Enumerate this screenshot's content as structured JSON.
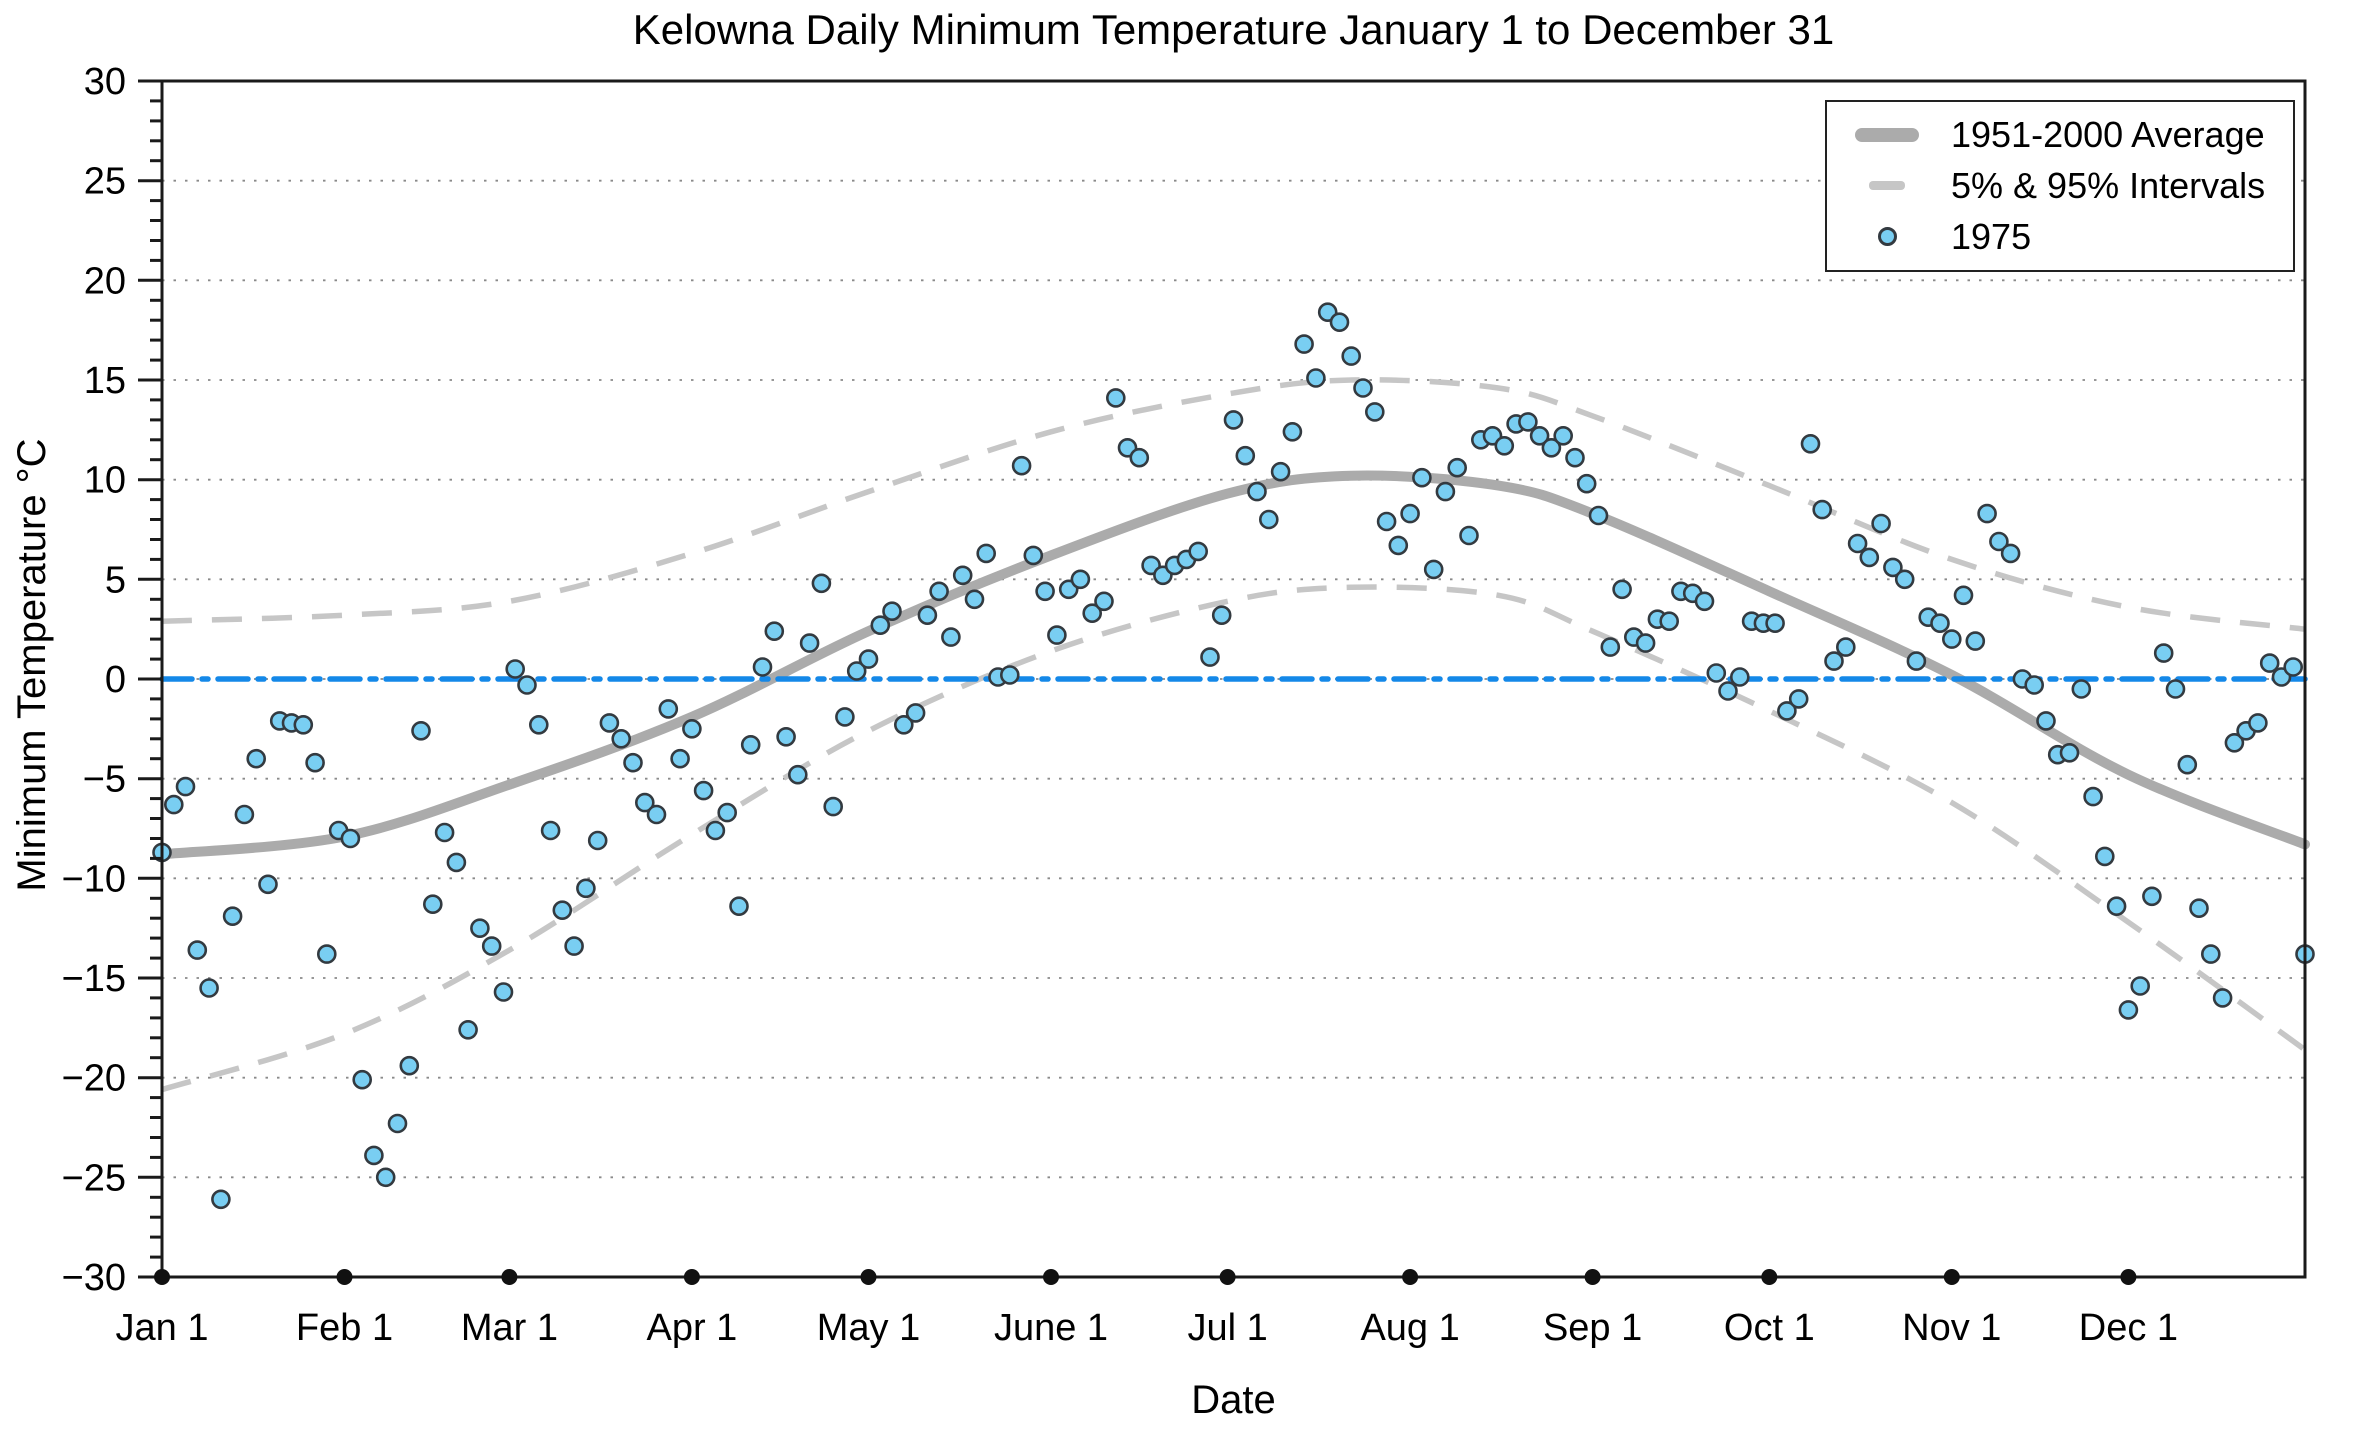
{
  "chart_data": {
    "type": "scatter",
    "title": "Kelowna Daily Minimum Temperature January 1 to December 31",
    "xlabel": "Date",
    "ylabel": "Minimum Temperature °C",
    "ylim": [
      -30,
      30
    ],
    "y_tick_step_major": 5,
    "y_tick_step_minor": 1,
    "grid": "horizontal dotted lines every 5°C",
    "legend_position": "top-right",
    "legend": [
      {
        "label": "1951-2000 Average",
        "swatch": "thick-gray-line"
      },
      {
        "label": "5% & 95% Intervals",
        "swatch": "gray-dashed-line"
      },
      {
        "label": "1975",
        "swatch": "blue-circle-marker"
      }
    ],
    "y_tick_labels": [
      "30",
      "25",
      "20",
      "15",
      "10",
      "5",
      "0",
      "−5",
      "−10",
      "−15",
      "−20",
      "−25",
      "−30"
    ],
    "x_tick_labels": [
      "Jan 1",
      "Feb 1",
      "Mar 1",
      "Apr 1",
      "May 1",
      "June 1",
      "Jul 1",
      "Aug 1",
      "Sep 1",
      "Oct 1",
      "Nov 1",
      "Dec 1"
    ],
    "month_start_days": [
      1,
      32,
      60,
      91,
      121,
      152,
      182,
      213,
      244,
      274,
      305,
      335
    ],
    "x_range_days": [
      1,
      365
    ],
    "zero_reference_line": {
      "value": 0,
      "style": "dash-dot",
      "color": "#1488E8"
    },
    "colors": {
      "average_line": "#ABABAB",
      "interval_lines": "#C6C6C6",
      "scatter_fill": "#79CEF2",
      "scatter_edge": "#333A40",
      "zero_line": "#1488E8",
      "axis": "#1a1a1a",
      "gridline": "#8a8a8a",
      "month_dot": "#111111"
    },
    "average_1951_2000": {
      "x_days": [
        1,
        32,
        60,
        91,
        121,
        152,
        182,
        203,
        228,
        244,
        274,
        305,
        335,
        365
      ],
      "values": [
        -8.8,
        -7.9,
        -5.3,
        -1.9,
        2.4,
        6.2,
        9.3,
        10.2,
        9.7,
        8.3,
        4.4,
        0.2,
        -4.8,
        -8.3
      ]
    },
    "interval_95_upper": {
      "x_days": [
        1,
        32,
        60,
        91,
        121,
        152,
        182,
        203,
        228,
        244,
        274,
        305,
        335,
        365
      ],
      "values": [
        2.9,
        3.2,
        3.9,
        6.3,
        9.4,
        12.4,
        14.3,
        15.0,
        14.6,
        13.2,
        9.7,
        6.0,
        3.6,
        2.5
      ]
    },
    "interval_5_lower": {
      "x_days": [
        1,
        32,
        60,
        91,
        121,
        152,
        182,
        203,
        228,
        244,
        274,
        305,
        335,
        365
      ],
      "values": [
        -20.6,
        -17.8,
        -13.6,
        -7.8,
        -2.6,
        1.4,
        3.9,
        4.6,
        4.2,
        2.4,
        -1.6,
        -6.2,
        -12.2,
        -18.6
      ]
    },
    "scatter_1975_points": [
      [
        1,
        -8.7
      ],
      [
        3,
        -6.3
      ],
      [
        5,
        -5.4
      ],
      [
        7,
        -13.6
      ],
      [
        9,
        -15.5
      ],
      [
        11,
        -26.1
      ],
      [
        13,
        -11.9
      ],
      [
        15,
        -6.8
      ],
      [
        17,
        -4.0
      ],
      [
        19,
        -10.3
      ],
      [
        21,
        -2.1
      ],
      [
        23,
        -2.2
      ],
      [
        25,
        -2.3
      ],
      [
        27,
        -4.2
      ],
      [
        29,
        -13.8
      ],
      [
        31,
        -7.6
      ],
      [
        33,
        -8.0
      ],
      [
        35,
        -20.1
      ],
      [
        37,
        -23.9
      ],
      [
        39,
        -25.0
      ],
      [
        41,
        -22.3
      ],
      [
        43,
        -19.4
      ],
      [
        45,
        -2.6
      ],
      [
        47,
        -11.3
      ],
      [
        49,
        -7.7
      ],
      [
        51,
        -9.2
      ],
      [
        53,
        -17.6
      ],
      [
        55,
        -12.5
      ],
      [
        57,
        -13.4
      ],
      [
        59,
        -15.7
      ],
      [
        61,
        0.5
      ],
      [
        63,
        -0.3
      ],
      [
        65,
        -2.3
      ],
      [
        67,
        -7.6
      ],
      [
        69,
        -11.6
      ],
      [
        71,
        -13.4
      ],
      [
        73,
        -10.5
      ],
      [
        75,
        -8.1
      ],
      [
        77,
        -2.2
      ],
      [
        79,
        -3.0
      ],
      [
        81,
        -4.2
      ],
      [
        83,
        -6.2
      ],
      [
        85,
        -6.8
      ],
      [
        87,
        -1.5
      ],
      [
        89,
        -4.0
      ],
      [
        91,
        -2.5
      ],
      [
        93,
        -5.6
      ],
      [
        95,
        -7.6
      ],
      [
        97,
        -6.7
      ],
      [
        99,
        -11.4
      ],
      [
        101,
        -3.3
      ],
      [
        103,
        0.6
      ],
      [
        105,
        2.4
      ],
      [
        107,
        -2.9
      ],
      [
        109,
        -4.8
      ],
      [
        111,
        1.8
      ],
      [
        113,
        4.8
      ],
      [
        115,
        -6.4
      ],
      [
        117,
        -1.9
      ],
      [
        119,
        0.4
      ],
      [
        121,
        1.0
      ],
      [
        123,
        2.7
      ],
      [
        125,
        3.4
      ],
      [
        127,
        -2.3
      ],
      [
        129,
        -1.7
      ],
      [
        131,
        3.2
      ],
      [
        133,
        4.4
      ],
      [
        135,
        2.1
      ],
      [
        137,
        5.2
      ],
      [
        139,
        4.0
      ],
      [
        141,
        6.3
      ],
      [
        143,
        0.1
      ],
      [
        145,
        0.2
      ],
      [
        147,
        10.7
      ],
      [
        149,
        6.2
      ],
      [
        151,
        4.4
      ],
      [
        153,
        2.2
      ],
      [
        155,
        4.5
      ],
      [
        157,
        5.0
      ],
      [
        159,
        3.3
      ],
      [
        161,
        3.9
      ],
      [
        163,
        14.1
      ],
      [
        165,
        11.6
      ],
      [
        167,
        11.1
      ],
      [
        169,
        5.7
      ],
      [
        171,
        5.2
      ],
      [
        173,
        5.7
      ],
      [
        175,
        6.0
      ],
      [
        177,
        6.4
      ],
      [
        179,
        1.1
      ],
      [
        181,
        3.2
      ],
      [
        183,
        13.0
      ],
      [
        185,
        11.2
      ],
      [
        187,
        9.4
      ],
      [
        189,
        8.0
      ],
      [
        191,
        10.4
      ],
      [
        193,
        12.4
      ],
      [
        195,
        16.8
      ],
      [
        197,
        15.1
      ],
      [
        199,
        18.4
      ],
      [
        201,
        17.9
      ],
      [
        203,
        16.2
      ],
      [
        205,
        14.6
      ],
      [
        207,
        13.4
      ],
      [
        209,
        7.9
      ],
      [
        211,
        6.7
      ],
      [
        213,
        8.3
      ],
      [
        215,
        10.1
      ],
      [
        217,
        5.5
      ],
      [
        219,
        9.4
      ],
      [
        221,
        10.6
      ],
      [
        223,
        7.2
      ],
      [
        225,
        12.0
      ],
      [
        227,
        12.2
      ],
      [
        229,
        11.7
      ],
      [
        231,
        12.8
      ],
      [
        233,
        12.9
      ],
      [
        235,
        12.2
      ],
      [
        237,
        11.6
      ],
      [
        239,
        12.2
      ],
      [
        241,
        11.1
      ],
      [
        243,
        9.8
      ],
      [
        245,
        8.2
      ],
      [
        247,
        1.6
      ],
      [
        249,
        4.5
      ],
      [
        251,
        2.1
      ],
      [
        253,
        1.8
      ],
      [
        255,
        3.0
      ],
      [
        257,
        2.9
      ],
      [
        259,
        4.4
      ],
      [
        261,
        4.3
      ],
      [
        263,
        3.9
      ],
      [
        265,
        0.3
      ],
      [
        267,
        -0.6
      ],
      [
        269,
        0.1
      ],
      [
        271,
        2.9
      ],
      [
        273,
        2.8
      ],
      [
        275,
        2.8
      ],
      [
        277,
        -1.6
      ],
      [
        279,
        -1.0
      ],
      [
        281,
        11.8
      ],
      [
        283,
        8.5
      ],
      [
        285,
        0.9
      ],
      [
        287,
        1.6
      ],
      [
        289,
        6.8
      ],
      [
        291,
        6.1
      ],
      [
        293,
        7.8
      ],
      [
        295,
        5.6
      ],
      [
        297,
        5.0
      ],
      [
        299,
        0.9
      ],
      [
        301,
        3.1
      ],
      [
        303,
        2.8
      ],
      [
        305,
        2.0
      ],
      [
        307,
        4.2
      ],
      [
        309,
        1.9
      ],
      [
        311,
        8.3
      ],
      [
        313,
        6.9
      ],
      [
        315,
        6.3
      ],
      [
        317,
        0.0
      ],
      [
        319,
        -0.3
      ],
      [
        321,
        -2.1
      ],
      [
        323,
        -3.8
      ],
      [
        325,
        -3.7
      ],
      [
        327,
        -0.5
      ],
      [
        329,
        -5.9
      ],
      [
        331,
        -8.9
      ],
      [
        333,
        -11.4
      ],
      [
        335,
        -16.6
      ],
      [
        337,
        -15.4
      ],
      [
        339,
        -10.9
      ],
      [
        341,
        1.3
      ],
      [
        343,
        -0.5
      ],
      [
        345,
        -4.3
      ],
      [
        347,
        -11.5
      ],
      [
        349,
        -13.8
      ],
      [
        351,
        -16.0
      ],
      [
        353,
        -3.2
      ],
      [
        355,
        -2.6
      ],
      [
        357,
        -2.2
      ],
      [
        359,
        0.8
      ],
      [
        361,
        0.1
      ],
      [
        363,
        0.6
      ],
      [
        365,
        -13.8
      ]
    ]
  }
}
